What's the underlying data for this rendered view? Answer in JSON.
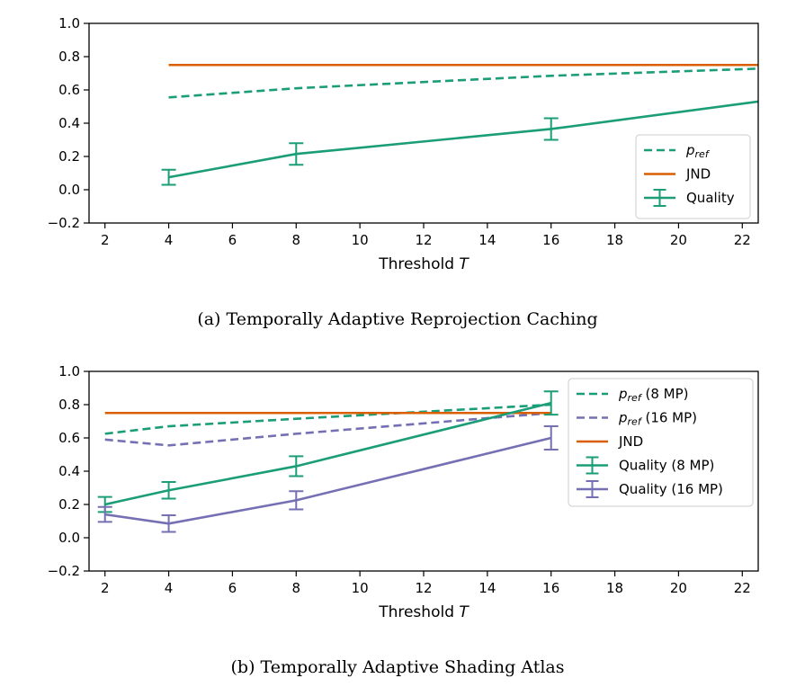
{
  "colors": {
    "green": "#1b9e77",
    "orange": "#d95f02",
    "purple": "#7570b3"
  },
  "chart_data": [
    {
      "type": "line",
      "caption": "(a)  Temporally Adaptive Reprojection Caching",
      "xlabel": "Threshold",
      "xlabel_var": "T",
      "ylabel": "",
      "xlim": [
        1.5,
        22.5
      ],
      "ylim": [
        -0.2,
        1.0
      ],
      "xticks": [
        2,
        4,
        6,
        8,
        10,
        12,
        14,
        16,
        18,
        20,
        22
      ],
      "yticks": [
        -0.2,
        0.0,
        0.2,
        0.4,
        0.6,
        0.8,
        1.0
      ],
      "ytick_labels": [
        "−0.2",
        "0.0",
        "0.2",
        "0.4",
        "0.6",
        "0.8",
        "1.0"
      ],
      "grid": false,
      "legend_position": "lower-right",
      "series": [
        {
          "name": "p",
          "name_sub": "ref",
          "style": "dashed",
          "color": "#1b9e77",
          "x": [
            4,
            8,
            16,
            22.5
          ],
          "y": [
            0.555,
            0.61,
            0.685,
            0.728
          ]
        },
        {
          "name": "JND",
          "style": "solid",
          "color": "#d95f02",
          "x": [
            4,
            22.5
          ],
          "y": [
            0.75,
            0.75
          ]
        },
        {
          "name": "Quality",
          "style": "errorbar",
          "color": "#1b9e77",
          "x": [
            4,
            8,
            16,
            22.5
          ],
          "y": [
            0.075,
            0.215,
            0.365,
            0.53
          ],
          "err": [
            0.045,
            0.065,
            0.065,
            null
          ]
        }
      ]
    },
    {
      "type": "line",
      "caption": "(b)  Temporally Adaptive Shading Atlas",
      "xlabel": "Threshold",
      "xlabel_var": "T",
      "ylabel": "",
      "xlim": [
        1.5,
        22.5
      ],
      "ylim": [
        -0.2,
        1.0
      ],
      "xticks": [
        2,
        4,
        6,
        8,
        10,
        12,
        14,
        16,
        18,
        20,
        22
      ],
      "yticks": [
        -0.2,
        0.0,
        0.2,
        0.4,
        0.6,
        0.8,
        1.0
      ],
      "ytick_labels": [
        "−0.2",
        "0.0",
        "0.2",
        "0.4",
        "0.6",
        "0.8",
        "1.0"
      ],
      "grid": false,
      "legend_position": "upper-right",
      "series": [
        {
          "name": "p",
          "name_sub": "ref",
          "name_suffix": " (8 MP)",
          "style": "dashed",
          "color": "#1b9e77",
          "x": [
            2,
            4,
            8,
            16
          ],
          "y": [
            0.625,
            0.67,
            0.715,
            0.8
          ]
        },
        {
          "name": "p",
          "name_sub": "ref",
          "name_suffix": " (16 MP)",
          "style": "dashed",
          "color": "#7570b3",
          "x": [
            2,
            4,
            8,
            16
          ],
          "y": [
            0.59,
            0.555,
            0.625,
            0.75
          ]
        },
        {
          "name": "JND",
          "style": "solid",
          "color": "#d95f02",
          "x": [
            2,
            16
          ],
          "y": [
            0.75,
            0.75
          ]
        },
        {
          "name": "Quality (8 MP)",
          "style": "errorbar",
          "color": "#1b9e77",
          "x": [
            2,
            4,
            8,
            16
          ],
          "y": [
            0.2,
            0.285,
            0.43,
            0.81
          ],
          "err": [
            0.045,
            0.05,
            0.06,
            0.07
          ]
        },
        {
          "name": "Quality (16 MP)",
          "style": "errorbar",
          "color": "#7570b3",
          "x": [
            2,
            4,
            8,
            16
          ],
          "y": [
            0.14,
            0.085,
            0.225,
            0.6
          ],
          "err": [
            0.045,
            0.05,
            0.055,
            0.07
          ]
        }
      ]
    }
  ]
}
